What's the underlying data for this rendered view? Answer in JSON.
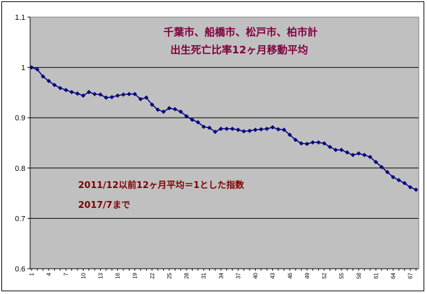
{
  "chart_data": {
    "type": "line",
    "title_lines": [
      "千葉市、船橋市、松戸市、柏市計",
      "出生死亡比率12ヶ月移動平均"
    ],
    "annotations": [
      "2011/12以前12ヶ月平均＝1とした指数",
      "2017/7まで"
    ],
    "xlabel": "",
    "ylabel": "",
    "ylim": [
      0.6,
      1.1
    ],
    "y_ticks": [
      "0.6",
      "0.7",
      "0.8",
      "0.9",
      "1",
      "1.1"
    ],
    "x_range": [
      1,
      68
    ],
    "x_tick_labels": [
      "1",
      "4",
      "7",
      "10",
      "13",
      "16",
      "19",
      "22",
      "25",
      "28",
      "31",
      "34",
      "37",
      "40",
      "43",
      "46",
      "49",
      "52",
      "55",
      "58",
      "61",
      "64",
      "67"
    ],
    "grid": "horizontal",
    "plot_background": "#c0c0c0",
    "series": [
      {
        "color": "#000080",
        "marker": "diamond",
        "values": [
          1.0,
          0.996,
          0.982,
          0.973,
          0.965,
          0.959,
          0.955,
          0.951,
          0.948,
          0.944,
          0.951,
          0.947,
          0.946,
          0.94,
          0.941,
          0.944,
          0.946,
          0.947,
          0.947,
          0.937,
          0.94,
          0.926,
          0.916,
          0.912,
          0.919,
          0.917,
          0.912,
          0.903,
          0.896,
          0.891,
          0.882,
          0.88,
          0.872,
          0.878,
          0.878,
          0.878,
          0.876,
          0.873,
          0.874,
          0.876,
          0.877,
          0.878,
          0.881,
          0.877,
          0.876,
          0.866,
          0.856,
          0.849,
          0.848,
          0.851,
          0.851,
          0.849,
          0.842,
          0.836,
          0.836,
          0.831,
          0.826,
          0.829,
          0.826,
          0.822,
          0.812,
          0.802,
          0.792,
          0.782,
          0.776,
          0.77,
          0.762,
          0.757
        ]
      }
    ]
  }
}
